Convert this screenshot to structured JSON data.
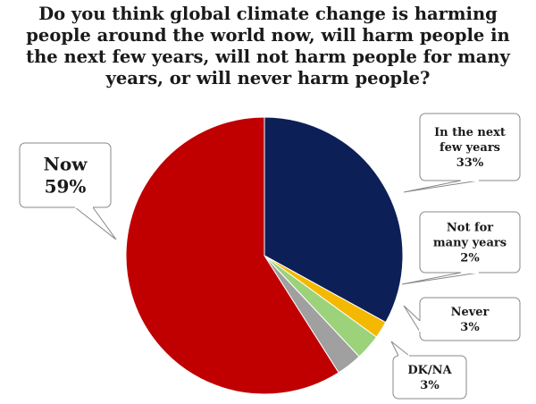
{
  "chart_data": {
    "type": "pie",
    "title_lines": [
      "Do you think global climate change is harming",
      "people around the world now, will harm people in",
      "the next few years, will not harm people for many",
      "years, or will never harm people?"
    ],
    "slices": [
      {
        "label_lines": [
          "In the next",
          "few years"
        ],
        "value": 33,
        "value_label": "33%",
        "color": "#0d1f57"
      },
      {
        "label_lines": [
          "Not for",
          "many years"
        ],
        "value": 2,
        "value_label": "2%",
        "color": "#f5b800"
      },
      {
        "label_lines": [
          "Never"
        ],
        "value": 3,
        "value_label": "3%",
        "color": "#9bd27a"
      },
      {
        "label_lines": [
          "DK/NA"
        ],
        "value": 3,
        "value_label": "3%",
        "color": "#a0a0a0"
      },
      {
        "label_lines": [
          "Now"
        ],
        "value": 59,
        "value_label": "59%",
        "color": "#c00000"
      }
    ]
  }
}
